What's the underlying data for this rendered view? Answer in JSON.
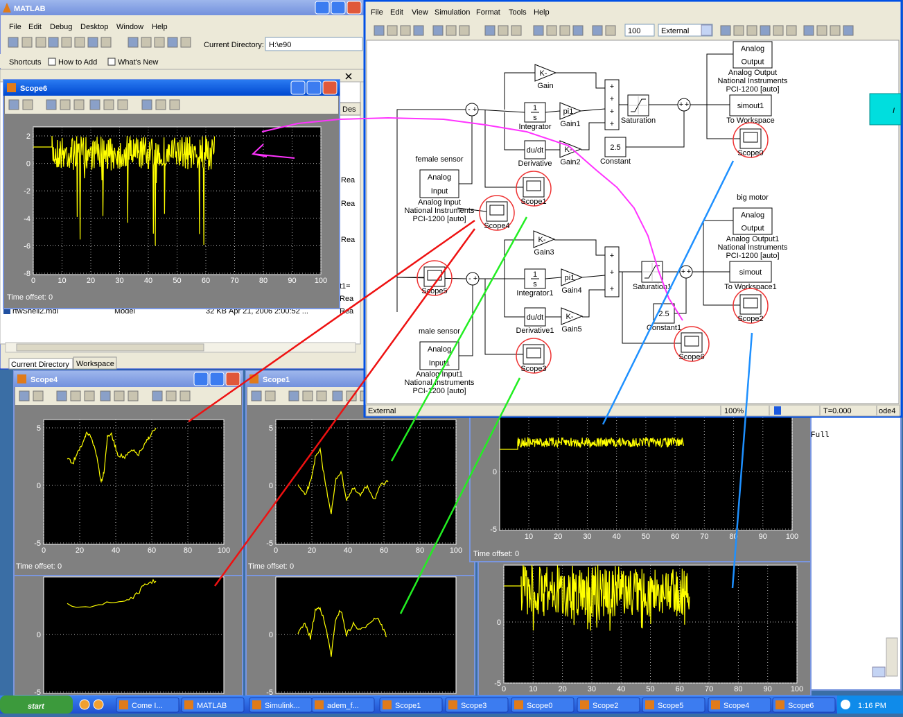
{
  "matlab": {
    "title": "MATLAB",
    "menu": [
      "File",
      "Edit",
      "Debug",
      "Desktop",
      "Window",
      "Help"
    ],
    "current_directory_label": "Current Directory:",
    "current_directory": "H:\\e90",
    "shortcuts": [
      "Shortcuts",
      "How to Add",
      "What's New"
    ],
    "file_row": [
      "rtwShell2.mdl",
      "Model",
      "32 KB",
      "Apr 21, 2006 2:00:52 ..."
    ],
    "tabs": [
      "Current Directory",
      "Workspace"
    ],
    "fragments": [
      "Des",
      "Rea",
      "Rea",
      "Rea",
      "t1=",
      "Rea",
      "Rea"
    ]
  },
  "simulink": {
    "menu": [
      "File",
      "Edit",
      "View",
      "Simulation",
      "Format",
      "Tools",
      "Help"
    ],
    "stop_time": "100",
    "mode": "External",
    "blocks": [
      {
        "icon": [
          "K-"
        ],
        "caption": [
          "Gain"
        ]
      },
      {
        "icon": [
          "1",
          "s"
        ],
        "caption": [
          "Integrator"
        ]
      },
      {
        "icon": [
          "pi1"
        ],
        "caption": [
          "Gain1"
        ]
      },
      {
        "icon": [
          "du/dt"
        ],
        "caption": [
          "Derivative"
        ]
      },
      {
        "icon": [
          "K-"
        ],
        "caption": [
          "Gain2"
        ]
      },
      {
        "icon": [
          "+",
          "+",
          "+",
          "+"
        ]
      },
      {
        "caption": [
          "Saturation"
        ]
      },
      {
        "icon": [
          "2.5"
        ],
        "caption": [
          "Constant"
        ]
      },
      {
        "icon": [
          "Analog",
          "Output"
        ],
        "caption": [
          "Analog Output",
          "National Instruments",
          "PCI-1200 [auto]"
        ]
      },
      {
        "icon": [
          "simout1"
        ],
        "caption": [
          "To Workspace"
        ]
      },
      {
        "caption": [
          "Scope0"
        ]
      },
      {
        "note": "female sensor",
        "icon": [
          "Analog",
          "Input"
        ],
        "caption": [
          "Analog Input",
          "National Instruments",
          "PCI-1200 [auto]"
        ]
      },
      {
        "caption": [
          "Scope1"
        ]
      },
      {
        "caption": [
          "Scope4"
        ]
      },
      {
        "icon": [
          "K-"
        ],
        "caption": [
          "Gain3"
        ]
      },
      {
        "icon": [
          "1",
          "s"
        ],
        "caption": [
          "Integrator1"
        ]
      },
      {
        "icon": [
          "pi1"
        ],
        "caption": [
          "Gain4"
        ]
      },
      {
        "icon": [
          "du/dt"
        ],
        "caption": [
          "Derivative1"
        ]
      },
      {
        "icon": [
          "K-"
        ],
        "caption": [
          "Gain5"
        ]
      },
      {
        "icon": [
          "+",
          "+",
          "+"
        ]
      },
      {
        "caption": [
          "Saturation1"
        ]
      },
      {
        "icon": [
          "2.5"
        ],
        "caption": [
          "Constant1"
        ]
      },
      {
        "note": "big motor",
        "icon": [
          "Analog",
          "Output"
        ],
        "caption": [
          "Analog Output1",
          "National Instruments",
          "PCI-1200 [auto]"
        ]
      },
      {
        "icon": [
          "simout"
        ],
        "caption": [
          "To Workspace1"
        ]
      },
      {
        "caption": [
          "Scope2"
        ]
      },
      {
        "caption": [
          "Scope5"
        ]
      },
      {
        "note": "male sensor",
        "icon": [
          "Analog",
          "Input1"
        ],
        "caption": [
          "Analog Input1",
          "National Instruments",
          "PCI-1200 [auto]"
        ]
      },
      {
        "caption": [
          "Scope3"
        ]
      },
      {
        "caption": [
          "Scope6"
        ]
      },
      {
        "icon": [
          "-",
          "+"
        ]
      },
      {
        "icon": [
          "+",
          "+"
        ]
      },
      {
        "icon": [
          "-",
          "+"
        ]
      },
      {
        "icon": [
          "+",
          "+"
        ]
      }
    ],
    "side_label": "I",
    "status": [
      "External",
      "100%",
      "T=0.000",
      "ode4"
    ]
  },
  "scopes": [
    {
      "title": "Scope6",
      "yticks": [
        "2",
        "0",
        "-2",
        "-4",
        "-6",
        "-8"
      ],
      "xticks": [
        "0",
        "10",
        "20",
        "30",
        "40",
        "50",
        "60",
        "70",
        "80",
        "90",
        "100"
      ],
      "time_offset_label": "Time offset:",
      "time_offset": "0"
    },
    {
      "title": "Scope4",
      "yticks": [
        "5",
        "0",
        "-5"
      ],
      "xticks": [
        "0",
        "20",
        "40",
        "60",
        "80",
        "100"
      ],
      "time_offset_label": "Time offset:",
      "time_offset": "0"
    },
    {
      "title": "Scope1",
      "yticks": [
        "5",
        "0",
        "-5"
      ],
      "xticks": [
        "0",
        "20",
        "40",
        "60",
        "80",
        "100"
      ],
      "time_offset_label": "Time offset:",
      "time_offset": "0"
    },
    {
      "yticks": [
        "0",
        "-5"
      ]
    },
    {
      "yticks": [
        "0",
        "-5"
      ]
    },
    {
      "yticks": [
        "0",
        "-5"
      ],
      "xticks": [
        "10",
        "20",
        "30",
        "40",
        "50",
        "60",
        "70",
        "80",
        "90",
        "100"
      ],
      "time_offset_label": "Time offset:",
      "time_offset": "0"
    },
    {
      "yticks": [
        "0",
        "-5"
      ],
      "xticks": [
        "0",
        "10",
        "20",
        "30",
        "40",
        "50",
        "60",
        "70",
        "80",
        "90",
        "100"
      ]
    }
  ],
  "console": {
    "text": "Full"
  },
  "taskbar": {
    "start": "start",
    "buttons": [
      "Come I...",
      "MATLAB",
      "Simulink...",
      "adem_f...",
      "Scope1",
      "Scope3",
      "Scope0",
      "Scope2",
      "Scope5",
      "Scope4",
      "Scope6"
    ],
    "clock": "1:16 PM"
  }
}
